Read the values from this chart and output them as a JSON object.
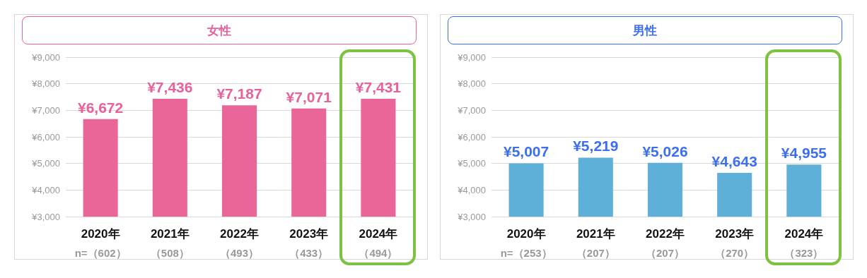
{
  "chart_data": [
    {
      "type": "bar",
      "title": "女性",
      "categories": [
        "2020年",
        "2021年",
        "2022年",
        "2023年",
        "2024年"
      ],
      "series": [
        {
          "color": "#ea6598",
          "values": [
            6672,
            7436,
            7187,
            7071,
            7431
          ],
          "value_labels": [
            "¥6,672",
            "¥7,436",
            "¥7,187",
            "¥7,071",
            "¥7,431"
          ]
        }
      ],
      "ylim": [
        3000,
        9000
      ],
      "yticks": [
        {
          "value": 3000,
          "label": "¥3,000"
        },
        {
          "value": 4000,
          "label": "¥4,000"
        },
        {
          "value": 5000,
          "label": "¥5,000"
        },
        {
          "value": 6000,
          "label": "¥6,000"
        },
        {
          "value": 7000,
          "label": "¥7,000"
        },
        {
          "value": 8000,
          "label": "¥8,000"
        },
        {
          "value": 9000,
          "label": "¥9,000"
        }
      ],
      "grid": "y",
      "annotations": [
        "n=（602）",
        "（508）",
        "（493）",
        "（433）",
        "（494）"
      ]
    },
    {
      "type": "bar",
      "title": "男性",
      "categories": [
        "2020年",
        "2021年",
        "2022年",
        "2023年",
        "2024年"
      ],
      "series": [
        {
          "color": "#5eb0d8",
          "values": [
            5007,
            5219,
            5026,
            4643,
            4955
          ],
          "value_labels": [
            "¥5,007",
            "¥5,219",
            "¥5,026",
            "¥4,643",
            "¥4,955"
          ]
        }
      ],
      "ylim": [
        3000,
        9000
      ],
      "yticks": [
        {
          "value": 3000,
          "label": "¥3,000"
        },
        {
          "value": 4000,
          "label": "¥4,000"
        },
        {
          "value": 5000,
          "label": "¥5,000"
        },
        {
          "value": 6000,
          "label": "¥6,000"
        },
        {
          "value": 7000,
          "label": "¥7,000"
        },
        {
          "value": 8000,
          "label": "¥8,000"
        },
        {
          "value": 9000,
          "label": "¥9,000"
        }
      ],
      "grid": "y",
      "annotations": [
        "n=（253）",
        "（207）",
        "（207）",
        "（270）",
        "（323）"
      ]
    }
  ]
}
